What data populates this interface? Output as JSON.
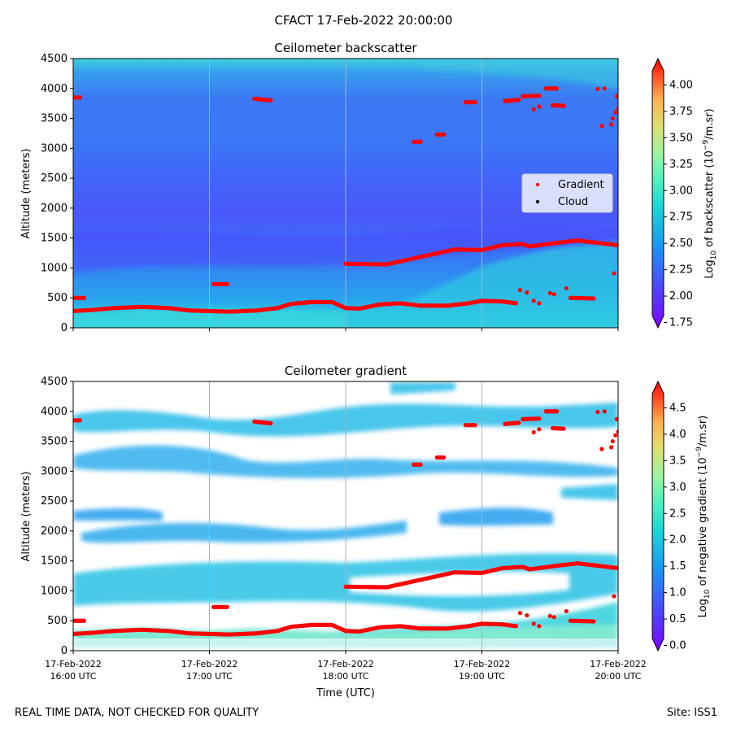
{
  "figure": {
    "title": "CFACT 17-Feb-2022 20:00:00",
    "footer_left": "REAL TIME DATA, NOT CHECKED FOR QUALITY",
    "footer_right": "Site: ISS1"
  },
  "chart_data": [
    {
      "type": "heatmap",
      "title": "Ceilometer backscatter",
      "ylabel": "Altitude (meters)",
      "xlabel": "",
      "ylim": [
        0,
        4500
      ],
      "xlim_hours": [
        16,
        20
      ],
      "yticks": [
        "0",
        "500",
        "1000",
        "1500",
        "2000",
        "2500",
        "3000",
        "3500",
        "4000",
        "4500"
      ],
      "xticks": [],
      "legend": {
        "position": "center-right",
        "entries": [
          "Gradient",
          "Cloud"
        ]
      },
      "colorbar": {
        "label_prefix": "Log",
        "label_sub": "10",
        "label_mid": " of backscatter (10",
        "label_sup": "−9",
        "label_suffix": "/m.sr)",
        "range": [
          1.7,
          4.25
        ],
        "ticks": [
          "1.75",
          "2.00",
          "2.25",
          "2.50",
          "2.75",
          "3.00",
          "3.25",
          "3.50",
          "3.75",
          "4.00"
        ]
      },
      "grid": "vertical"
    },
    {
      "type": "heatmap",
      "title": "Ceilometer gradient",
      "ylabel": "Altitude (meters)",
      "xlabel": "Time (UTC)",
      "ylim": [
        0,
        4500
      ],
      "xlim_hours": [
        16,
        20
      ],
      "yticks": [
        "0",
        "500",
        "1000",
        "1500",
        "2000",
        "2500",
        "3000",
        "3500",
        "4000",
        "4500"
      ],
      "xticks": [
        {
          "date": "17-Feb-2022",
          "time": "16:00 UTC"
        },
        {
          "date": "17-Feb-2022",
          "time": "17:00 UTC"
        },
        {
          "date": "17-Feb-2022",
          "time": "18:00 UTC"
        },
        {
          "date": "17-Feb-2022",
          "time": "19:00 UTC"
        },
        {
          "date": "17-Feb-2022",
          "time": "20:00 UTC"
        }
      ],
      "colorbar": {
        "label_prefix": "Log",
        "label_sub": "10",
        "label_mid": " of negative gradient (10",
        "label_sup": "−9",
        "label_suffix": "/m.sr)",
        "range": [
          -0.1,
          5.0
        ],
        "ticks": [
          "0.0",
          "0.5",
          "1.0",
          "1.5",
          "2.0",
          "2.5",
          "3.0",
          "3.5",
          "4.0",
          "4.5"
        ]
      },
      "grid": "vertical"
    }
  ],
  "gradient_points": {
    "description_units": "x in hours UTC, y in meters",
    "boundary_layer": [
      [
        16.0,
        280
      ],
      [
        16.15,
        300
      ],
      [
        16.3,
        330
      ],
      [
        16.5,
        350
      ],
      [
        16.7,
        330
      ],
      [
        16.85,
        290
      ],
      [
        17.0,
        280
      ],
      [
        17.15,
        270
      ],
      [
        17.35,
        290
      ],
      [
        17.5,
        330
      ],
      [
        17.6,
        400
      ],
      [
        17.75,
        430
      ],
      [
        17.9,
        430
      ],
      [
        18.0,
        330
      ],
      [
        18.1,
        320
      ],
      [
        18.25,
        390
      ],
      [
        18.4,
        410
      ],
      [
        18.55,
        370
      ],
      [
        18.75,
        370
      ],
      [
        18.9,
        410
      ],
      [
        19.0,
        450
      ],
      [
        19.15,
        440
      ],
      [
        19.25,
        410
      ]
    ],
    "upper_layer": [
      [
        18.0,
        1070
      ],
      [
        18.3,
        1060
      ],
      [
        18.4,
        1110
      ],
      [
        18.6,
        1210
      ],
      [
        18.8,
        1310
      ],
      [
        19.0,
        1300
      ],
      [
        19.15,
        1380
      ],
      [
        19.3,
        1400
      ],
      [
        19.35,
        1360
      ],
      [
        19.55,
        1420
      ],
      [
        19.7,
        1460
      ],
      [
        19.85,
        1420
      ],
      [
        20.0,
        1380
      ]
    ],
    "isolated_segments": [
      [
        [
          16.0,
          500
        ],
        [
          16.08,
          500
        ]
      ],
      [
        [
          17.03,
          730
        ],
        [
          17.13,
          730
        ]
      ],
      [
        [
          17.33,
          3830
        ],
        [
          17.45,
          3800
        ]
      ],
      [
        [
          18.5,
          3110
        ],
        [
          18.55,
          3110
        ]
      ],
      [
        [
          18.67,
          3230
        ],
        [
          18.72,
          3230
        ]
      ],
      [
        [
          18.88,
          3770
        ],
        [
          18.95,
          3770
        ]
      ],
      [
        [
          19.17,
          3790
        ],
        [
          19.27,
          3810
        ]
      ],
      [
        [
          19.3,
          3870
        ],
        [
          19.42,
          3880
        ]
      ],
      [
        [
          19.47,
          4000
        ],
        [
          19.55,
          4000
        ]
      ],
      [
        [
          19.52,
          3720
        ],
        [
          19.6,
          3710
        ]
      ],
      [
        [
          19.65,
          500
        ],
        [
          19.82,
          490
        ]
      ],
      [
        [
          16.0,
          3850
        ],
        [
          16.05,
          3850
        ]
      ]
    ],
    "scattered": [
      [
        19.28,
        630
      ],
      [
        19.33,
        590
      ],
      [
        19.38,
        450
      ],
      [
        19.42,
        410
      ],
      [
        19.5,
        580
      ],
      [
        19.53,
        560
      ],
      [
        19.62,
        660
      ],
      [
        19.38,
        3650
      ],
      [
        19.42,
        3700
      ],
      [
        19.85,
        3990
      ],
      [
        19.9,
        4000
      ],
      [
        19.88,
        3370
      ],
      [
        19.95,
        3400
      ],
      [
        19.96,
        3500
      ],
      [
        19.98,
        3600
      ],
      [
        20.0,
        3660
      ],
      [
        19.97,
        910
      ],
      [
        19.99,
        3870
      ]
    ]
  }
}
